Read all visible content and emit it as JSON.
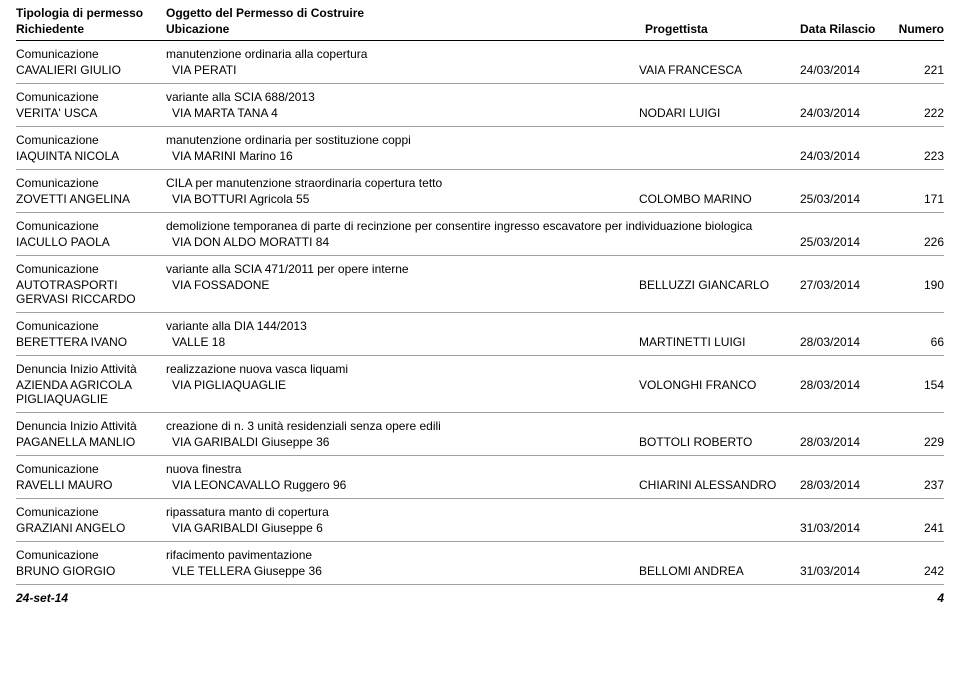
{
  "header": {
    "tipologia": "Tipologia di permesso",
    "oggetto": "Oggetto del Permesso di Costruire",
    "richiedente": "Richiedente",
    "ubicazione": "Ubicazione",
    "progettista": "Progettista",
    "dataRilascio": "Data Rilascio",
    "numero": "Numero"
  },
  "records": [
    {
      "tipologia": "Comunicazione",
      "oggetto": "manutenzione ordinaria alla copertura",
      "richiedente": "CAVALIERI GIULIO",
      "ubicazione": "VIA PERATI",
      "progettista": "VAIA FRANCESCA",
      "data": "24/03/2014",
      "numero": "221"
    },
    {
      "tipologia": "Comunicazione",
      "oggetto": "variante alla SCIA 688/2013",
      "richiedente": "VERITA' USCA",
      "ubicazione": "VIA MARTA TANA 4",
      "progettista": "NODARI LUIGI",
      "data": "24/03/2014",
      "numero": "222"
    },
    {
      "tipologia": "Comunicazione",
      "oggetto": "manutenzione ordinaria per sostituzione coppi",
      "richiedente": "IAQUINTA NICOLA",
      "ubicazione": "VIA MARINI Marino 16",
      "progettista": "",
      "data": "24/03/2014",
      "numero": "223"
    },
    {
      "tipologia": "Comunicazione",
      "oggetto": "CILA per manutenzione straordinaria copertura tetto",
      "richiedente": "ZOVETTI ANGELINA",
      "ubicazione": "VIA BOTTURI Agricola 55",
      "progettista": "COLOMBO MARINO",
      "data": "25/03/2014",
      "numero": "171"
    },
    {
      "tipologia": "Comunicazione",
      "oggetto": "demolizione temporanea di parte di recinzione per consentire ingresso escavatore per individuazione biologica",
      "richiedente": "IACULLO PAOLA",
      "ubicazione": "VIA DON ALDO MORATTI 84",
      "progettista": "",
      "data": "25/03/2014",
      "numero": "226"
    },
    {
      "tipologia": "Comunicazione",
      "oggetto": "variante alla SCIA 471/2011 per opere interne",
      "richiedente": "AUTOTRASPORTI GERVASI RICCARDO",
      "ubicazione": "VIA FOSSADONE",
      "progettista": "BELLUZZI GIANCARLO",
      "data": "27/03/2014",
      "numero": "190"
    },
    {
      "tipologia": "Comunicazione",
      "oggetto": "variante alla DIA 144/2013",
      "richiedente": "BERETTERA IVANO",
      "ubicazione": "VALLE 18",
      "progettista": "MARTINETTI LUIGI",
      "data": "28/03/2014",
      "numero": "66"
    },
    {
      "tipologia": "Denuncia Inizio Attività",
      "oggetto": "realizzazione nuova vasca liquami",
      "richiedente": "AZIENDA AGRICOLA PIGLIAQUAGLIE",
      "ubicazione": "VIA PIGLIAQUAGLIE",
      "progettista": "VOLONGHI FRANCO",
      "data": "28/03/2014",
      "numero": "154"
    },
    {
      "tipologia": "Denuncia Inizio Attività",
      "oggetto": "creazione di n. 3 unità residenziali senza opere edili",
      "richiedente": "PAGANELLA MANLIO",
      "ubicazione": "VIA GARIBALDI Giuseppe 36",
      "progettista": "BOTTOLI ROBERTO",
      "data": "28/03/2014",
      "numero": "229"
    },
    {
      "tipologia": "Comunicazione",
      "oggetto": "nuova finestra",
      "richiedente": "RAVELLI MAURO",
      "ubicazione": "VIA LEONCAVALLO Ruggero 96",
      "progettista": "CHIARINI ALESSANDRO",
      "data": "28/03/2014",
      "numero": "237"
    },
    {
      "tipologia": "Comunicazione",
      "oggetto": "ripassatura manto di copertura",
      "richiedente": "GRAZIANI ANGELO",
      "ubicazione": "VIA GARIBALDI Giuseppe 6",
      "progettista": "",
      "data": "31/03/2014",
      "numero": "241"
    },
    {
      "tipologia": "Comunicazione",
      "oggetto": "rifacimento pavimentazione",
      "richiedente": "BRUNO GIORGIO",
      "ubicazione": "VLE TELLERA Giuseppe 36",
      "progettista": "BELLOMI ANDREA",
      "data": "31/03/2014",
      "numero": "242"
    }
  ],
  "footer": {
    "date": "24-set-14",
    "page": "4"
  }
}
